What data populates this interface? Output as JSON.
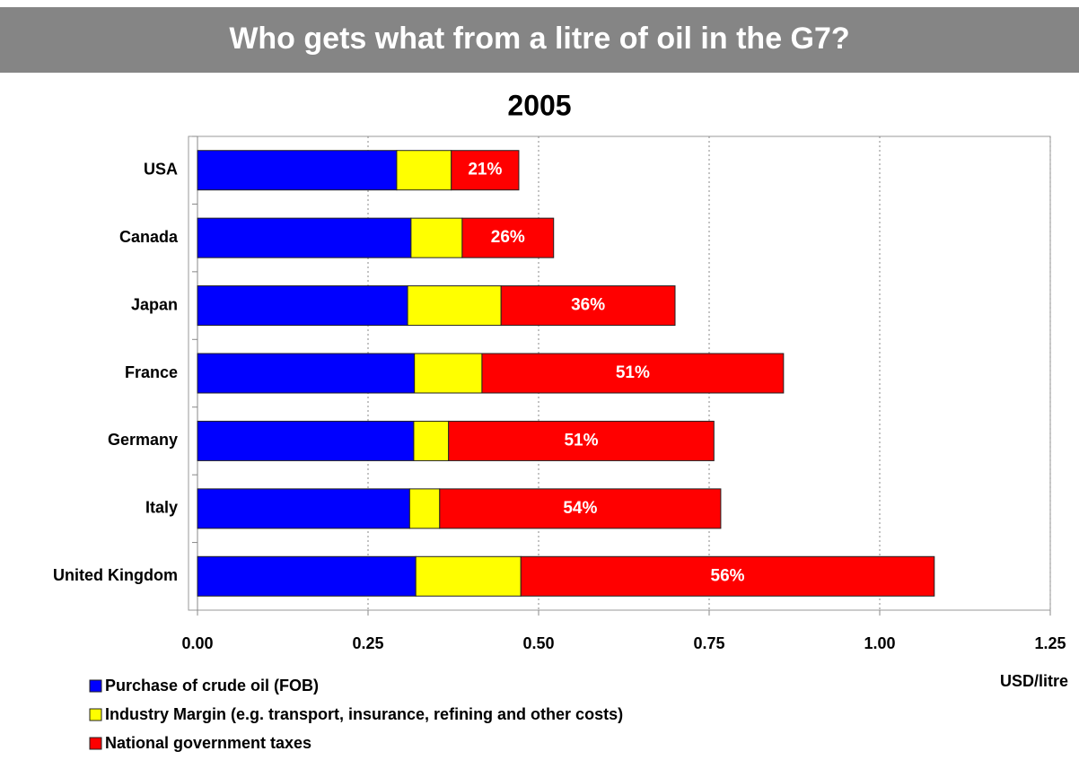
{
  "chart_data": {
    "type": "stacked-bar-horizontal",
    "title": "Who gets what from a litre of oil in the G7?",
    "subtitle": "2005",
    "x_label": "USD/litre",
    "categories": [
      "USA",
      "Canada",
      "Japan",
      "France",
      "Germany",
      "Italy",
      "United Kingdom"
    ],
    "series": [
      {
        "name": "Purchase of crude oil (FOB)",
        "color": "#0000ff",
        "values": [
          0.292,
          0.313,
          0.308,
          0.318,
          0.317,
          0.311,
          0.32
        ]
      },
      {
        "name": "Industry Margin (e.g. transport, insurance, refining and other costs)",
        "color": "#ffff00",
        "values": [
          0.08,
          0.075,
          0.137,
          0.099,
          0.051,
          0.044,
          0.154
        ]
      },
      {
        "name": "National government taxes",
        "color": "#ff0000",
        "values": [
          0.099,
          0.134,
          0.255,
          0.442,
          0.389,
          0.412,
          0.606
        ]
      }
    ],
    "share_labels": [
      "21%",
      "26%",
      "36%",
      "51%",
      "51%",
      "54%",
      "56%"
    ],
    "xlim": [
      0,
      1.25
    ],
    "xticks": [
      {
        "value": 0,
        "label": "0.00"
      },
      {
        "value": 0.25,
        "label": "0.25"
      },
      {
        "value": 0.5,
        "label": "0.50"
      },
      {
        "value": 0.75,
        "label": "0.75"
      },
      {
        "value": 1,
        "label": "1.00"
      },
      {
        "value": 1.25,
        "label": "1.25"
      }
    ],
    "grid": true,
    "legend": "bottom-left"
  }
}
